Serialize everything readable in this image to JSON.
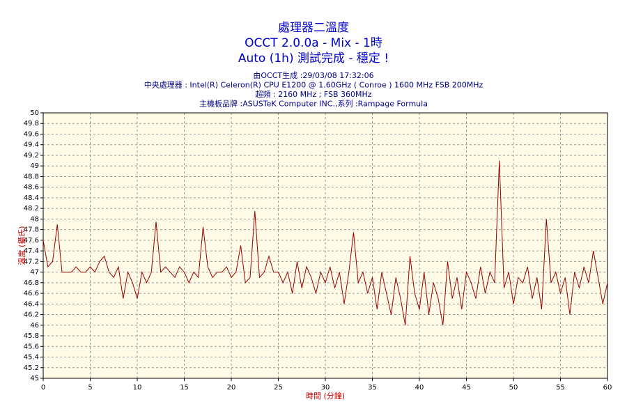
{
  "chart_data": {
    "type": "line",
    "title": [
      "處理器二溫度",
      "OCCT 2.0.0a - Mix - 1時",
      "Auto (1h) 測試完成 - 穩定 !"
    ],
    "subtitle": [
      "由OCCT生成 :29/03/08 17:32:06",
      "中央處理器 : Intel(R) Celeron(R) CPU E1200 @ 1.60GHz ( Conroe ) 1600 MHz FSB 200MHz",
      "超頻 : 2160 MHz ; FSB 360MHz",
      "主機板品牌 :ASUSTeK Computer INC.,系列 :Rampage Formula"
    ],
    "x_label": "時間 (分鐘)",
    "y_label": "溫度 (攝氏)",
    "x": [
      0,
      0.5,
      1,
      1.5,
      2,
      2.5,
      3,
      3.5,
      4,
      4.5,
      5,
      5.5,
      6,
      6.5,
      7,
      7.5,
      8,
      8.5,
      9,
      9.5,
      10,
      10.5,
      11,
      11.5,
      12,
      12.5,
      13,
      13.5,
      14,
      14.5,
      15,
      15.5,
      16,
      16.5,
      17,
      17.5,
      18,
      18.5,
      19,
      19.5,
      20,
      20.5,
      21,
      21.5,
      22,
      22.5,
      23,
      23.5,
      24,
      24.5,
      25,
      25.5,
      26,
      26.5,
      27,
      27.5,
      28,
      28.5,
      29,
      29.5,
      30,
      30.5,
      31,
      31.5,
      32,
      32.5,
      33,
      33.5,
      34,
      34.5,
      35,
      35.5,
      36,
      36.5,
      37,
      37.5,
      38,
      38.5,
      39,
      39.5,
      40,
      40.5,
      41,
      41.5,
      42,
      42.5,
      43,
      43.5,
      44,
      44.5,
      45,
      45.5,
      46,
      46.5,
      47,
      47.5,
      48,
      48.5,
      49,
      49.5,
      50,
      50.5,
      51,
      51.5,
      52,
      52.5,
      53,
      53.5,
      54,
      54.5,
      55,
      55.5,
      56,
      56.5,
      57,
      57.5,
      58,
      58.5,
      59,
      59.5,
      60
    ],
    "series": [
      {
        "color": "#990000",
        "values": [
          47.6,
          47.1,
          47.2,
          47.9,
          47.0,
          47.0,
          47.0,
          47.1,
          47.0,
          47.0,
          47.1,
          47.0,
          47.2,
          47.3,
          47.0,
          46.9,
          47.1,
          46.5,
          47.0,
          46.8,
          46.5,
          47.0,
          46.8,
          47.0,
          47.95,
          47.0,
          47.1,
          47.0,
          46.9,
          47.1,
          47.0,
          46.8,
          47.0,
          46.9,
          47.85,
          47.1,
          46.9,
          47.0,
          47.0,
          47.1,
          46.9,
          47.0,
          47.5,
          46.8,
          46.9,
          48.15,
          46.9,
          47.0,
          47.3,
          47.0,
          47.0,
          46.8,
          47.0,
          46.6,
          47.2,
          46.7,
          47.1,
          46.9,
          46.6,
          47.0,
          46.8,
          47.1,
          46.7,
          47.0,
          46.4,
          47.0,
          47.75,
          46.8,
          47.0,
          46.6,
          46.9,
          46.3,
          47.0,
          46.6,
          46.2,
          46.9,
          46.5,
          46.0,
          47.3,
          46.6,
          46.3,
          47.0,
          46.2,
          46.8,
          46.5,
          46.0,
          47.2,
          46.5,
          46.9,
          46.3,
          47.0,
          46.8,
          46.5,
          47.1,
          46.6,
          47.0,
          46.8,
          49.1,
          46.7,
          47.0,
          46.4,
          46.9,
          46.8,
          47.1,
          46.5,
          46.9,
          46.3,
          48.0,
          46.8,
          47.0,
          46.6,
          46.9,
          46.2,
          47.0,
          46.7,
          47.1,
          46.8,
          47.4,
          46.9,
          46.4,
          46.8
        ]
      }
    ],
    "xlim": [
      0,
      60
    ],
    "xticks": [
      0,
      5,
      10,
      15,
      20,
      25,
      30,
      35,
      40,
      45,
      50,
      55,
      60
    ],
    "ylim": [
      45,
      50
    ],
    "yticks": [
      45,
      45.2,
      45.4,
      45.6,
      45.8,
      46,
      46.2,
      46.4,
      46.6,
      46.8,
      47,
      47.2,
      47.4,
      47.6,
      47.8,
      48,
      48.2,
      48.4,
      48.6,
      48.8,
      49,
      49.2,
      49.4,
      49.6,
      49.8,
      50
    ],
    "grid": true,
    "background": "#fffbe6"
  }
}
